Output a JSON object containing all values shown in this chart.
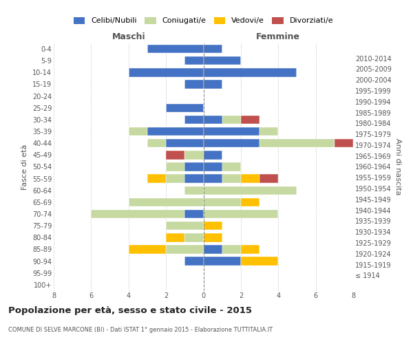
{
  "age_groups": [
    "100+",
    "95-99",
    "90-94",
    "85-89",
    "80-84",
    "75-79",
    "70-74",
    "65-69",
    "60-64",
    "55-59",
    "50-54",
    "45-49",
    "40-44",
    "35-39",
    "30-34",
    "25-29",
    "20-24",
    "15-19",
    "10-14",
    "5-9",
    "0-4"
  ],
  "birth_years": [
    "≤ 1914",
    "1915-1919",
    "1920-1924",
    "1925-1929",
    "1930-1934",
    "1935-1939",
    "1940-1944",
    "1945-1949",
    "1950-1954",
    "1955-1959",
    "1960-1964",
    "1965-1969",
    "1970-1974",
    "1975-1979",
    "1980-1984",
    "1985-1989",
    "1990-1994",
    "1995-1999",
    "2000-2004",
    "2005-2009",
    "2010-2014"
  ],
  "maschi": {
    "celibi": [
      0,
      0,
      1,
      0,
      0,
      0,
      1,
      0,
      0,
      1,
      1,
      0,
      2,
      3,
      1,
      2,
      0,
      1,
      4,
      1,
      3
    ],
    "coniugati": [
      0,
      0,
      0,
      2,
      1,
      2,
      5,
      4,
      1,
      1,
      1,
      1,
      1,
      1,
      0,
      0,
      0,
      0,
      0,
      0,
      0
    ],
    "vedovi": [
      0,
      0,
      0,
      2,
      1,
      0,
      0,
      0,
      0,
      1,
      0,
      0,
      0,
      0,
      0,
      0,
      0,
      0,
      0,
      0,
      0
    ],
    "divorziati": [
      0,
      0,
      0,
      0,
      0,
      0,
      0,
      0,
      0,
      0,
      0,
      1,
      0,
      0,
      0,
      0,
      0,
      0,
      0,
      0,
      0
    ]
  },
  "femmine": {
    "celibi": [
      0,
      0,
      2,
      1,
      0,
      0,
      0,
      0,
      0,
      1,
      1,
      1,
      3,
      3,
      1,
      0,
      0,
      1,
      5,
      2,
      1
    ],
    "coniugati": [
      0,
      0,
      0,
      1,
      0,
      0,
      4,
      2,
      5,
      1,
      1,
      0,
      4,
      1,
      1,
      0,
      0,
      0,
      0,
      0,
      0
    ],
    "vedovi": [
      0,
      0,
      2,
      1,
      1,
      1,
      0,
      1,
      0,
      1,
      0,
      0,
      0,
      0,
      0,
      0,
      0,
      0,
      0,
      0,
      0
    ],
    "divorziati": [
      0,
      0,
      0,
      0,
      0,
      0,
      0,
      0,
      0,
      1,
      0,
      0,
      1,
      0,
      1,
      0,
      0,
      0,
      0,
      0,
      0
    ]
  },
  "colors": {
    "celibi": "#4472C4",
    "coniugati": "#C5D9A0",
    "vedovi": "#FFC000",
    "divorziati": "#C0504D"
  },
  "xlim": 8,
  "title_main": "Popolazione per età, sesso e stato civile - 2015",
  "title_sub": "COMUNE DI SELVE MARCONE (BI) - Dati ISTAT 1° gennaio 2015 - Elaborazione TUTTITALIA.IT",
  "ylabel_left": "Fasce di età",
  "ylabel_right": "Anni di nascita",
  "xlabel_left": "Maschi",
  "xlabel_right": "Femmine",
  "legend_labels": [
    "Celibi/Nubili",
    "Coniugati/e",
    "Vedovi/e",
    "Divorziati/e"
  ],
  "bg_color": "#ffffff",
  "grid_color": "#cccccc",
  "axis_text_color": "#555555"
}
